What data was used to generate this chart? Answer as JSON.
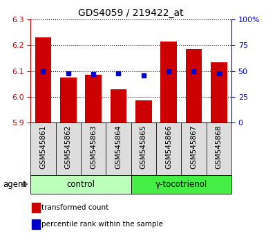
{
  "title": "GDS4059 / 219422_at",
  "samples": [
    "GSM545861",
    "GSM545862",
    "GSM545863",
    "GSM545864",
    "GSM545865",
    "GSM545866",
    "GSM545867",
    "GSM545868"
  ],
  "bar_values": [
    6.23,
    6.075,
    6.085,
    6.03,
    5.985,
    6.215,
    6.185,
    6.135
  ],
  "percentile_values": [
    50,
    48,
    47,
    48,
    46,
    50,
    50,
    48
  ],
  "ylim_left": [
    5.9,
    6.3
  ],
  "ylim_right": [
    0,
    100
  ],
  "yticks_left": [
    5.9,
    6.0,
    6.1,
    6.2,
    6.3
  ],
  "yticks_right": [
    0,
    25,
    50,
    75,
    100
  ],
  "bar_color": "#cc0000",
  "marker_color": "#0000cc",
  "bar_width": 0.65,
  "groups": [
    {
      "label": "control",
      "indices": [
        0,
        1,
        2,
        3
      ],
      "color": "#bbffbb"
    },
    {
      "label": "γ-tocotrienol",
      "indices": [
        4,
        5,
        6,
        7
      ],
      "color": "#44ee44"
    }
  ],
  "agent_label": "agent",
  "legend_items": [
    {
      "label": "transformed count",
      "color": "#cc0000"
    },
    {
      "label": "percentile rank within the sample",
      "color": "#0000cc"
    }
  ],
  "grid_linestyle": "dotted",
  "bg_color": "#ffffff",
  "tick_label_color_left": "#cc0000",
  "tick_label_color_right": "#0000cc",
  "xtick_box_color": "#dddddd",
  "xtick_fontsize": 7.5,
  "title_fontsize": 10
}
